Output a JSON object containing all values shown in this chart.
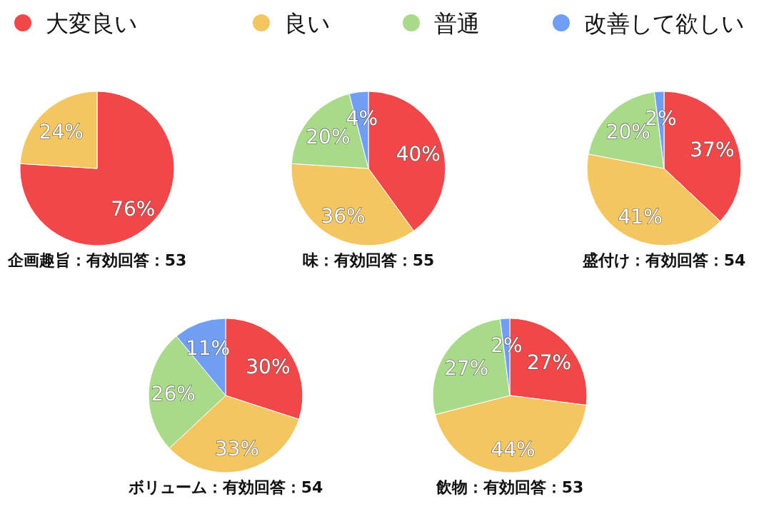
{
  "chart_data": [
    {
      "type": "pie",
      "title": "企画趣旨：有効回答：53",
      "categories": [
        "大変良い",
        "良い",
        "普通",
        "改善して欲しい"
      ],
      "values": [
        76,
        24,
        0,
        0
      ],
      "value_labels": [
        "76%",
        "24%",
        null,
        null
      ],
      "colors": [
        "#f0484a",
        "#f3c661",
        "#a9da8a",
        "#6f9ef2"
      ],
      "legend": "top"
    },
    {
      "type": "pie",
      "title": "味：有効回答：55",
      "values": [
        40,
        36,
        20,
        4
      ],
      "value_labels": [
        "40%",
        "36%",
        "20%",
        "4%"
      ],
      "colors": [
        "#f0484a",
        "#f3c661",
        "#a9da8a",
        "#6f9ef2"
      ]
    },
    {
      "type": "pie",
      "title": "盛付け：有効回答：54",
      "values": [
        37,
        41,
        20,
        2
      ],
      "value_labels": [
        "37%",
        "41%",
        "20%",
        "2%"
      ],
      "colors": [
        "#f0484a",
        "#f3c661",
        "#a9da8a",
        "#6f9ef2"
      ]
    },
    {
      "type": "pie",
      "title": "ボリューム：有効回答：54",
      "values": [
        30,
        33,
        26,
        11
      ],
      "value_labels": [
        "30%",
        "33%",
        "26%",
        "11%"
      ],
      "colors": [
        "#f0484a",
        "#f3c661",
        "#a9da8a",
        "#6f9ef2"
      ]
    },
    {
      "type": "pie",
      "title": "飲物：有効回答：53",
      "values": [
        27,
        44,
        27,
        2
      ],
      "value_labels": [
        "27%",
        "44%",
        "27%",
        "2%"
      ],
      "colors": [
        "#f0484a",
        "#f3c661",
        "#a9da8a",
        "#6f9ef2"
      ]
    }
  ]
}
